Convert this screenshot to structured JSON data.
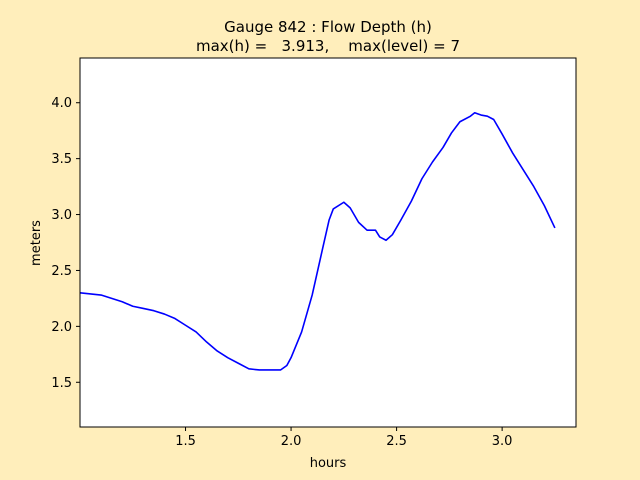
{
  "colors": {
    "figure_background": "#ffeebb",
    "axes_background": "#ffffff",
    "line": "#0000ff",
    "axes_edge": "#000000"
  },
  "chart_data": {
    "type": "line",
    "title": "Gauge 842 : Flow Depth (h)",
    "subtitle": "max(h) =   3.913,    max(level) = 7",
    "xlabel": "hours",
    "ylabel": "meters",
    "xlim": [
      1.0,
      3.35
    ],
    "ylim": [
      1.1,
      4.4
    ],
    "xticks": [
      1.5,
      2.0,
      2.5,
      3.0
    ],
    "xtick_labels": [
      "1.5",
      "2.0",
      "2.5",
      "3.0"
    ],
    "yticks": [
      1.5,
      2.0,
      2.5,
      3.0,
      3.5,
      4.0
    ],
    "ytick_labels": [
      "1.5",
      "2.0",
      "2.5",
      "3.0",
      "3.5",
      "4.0"
    ],
    "grid": false,
    "series": [
      {
        "color": "#0000ff",
        "x": [
          1.0,
          1.05,
          1.1,
          1.15,
          1.2,
          1.25,
          1.3,
          1.35,
          1.4,
          1.45,
          1.5,
          1.55,
          1.6,
          1.65,
          1.7,
          1.75,
          1.8,
          1.85,
          1.9,
          1.95,
          1.98,
          2.0,
          2.05,
          2.1,
          2.15,
          2.18,
          2.2,
          2.25,
          2.28,
          2.32,
          2.36,
          2.4,
          2.42,
          2.45,
          2.48,
          2.52,
          2.57,
          2.62,
          2.67,
          2.72,
          2.76,
          2.8,
          2.85,
          2.87,
          2.9,
          2.93,
          2.96,
          3.0,
          3.05,
          3.1,
          3.15,
          3.2,
          3.25
        ],
        "y": [
          2.3,
          2.29,
          2.28,
          2.25,
          2.22,
          2.18,
          2.16,
          2.14,
          2.11,
          2.07,
          2.01,
          1.95,
          1.86,
          1.78,
          1.72,
          1.67,
          1.62,
          1.61,
          1.61,
          1.61,
          1.65,
          1.72,
          1.95,
          2.28,
          2.7,
          2.95,
          3.05,
          3.11,
          3.06,
          2.93,
          2.86,
          2.86,
          2.8,
          2.77,
          2.82,
          2.95,
          3.12,
          3.32,
          3.47,
          3.6,
          3.73,
          3.83,
          3.88,
          3.91,
          3.89,
          3.88,
          3.85,
          3.72,
          3.55,
          3.4,
          3.25,
          3.08,
          2.88
        ]
      }
    ]
  }
}
